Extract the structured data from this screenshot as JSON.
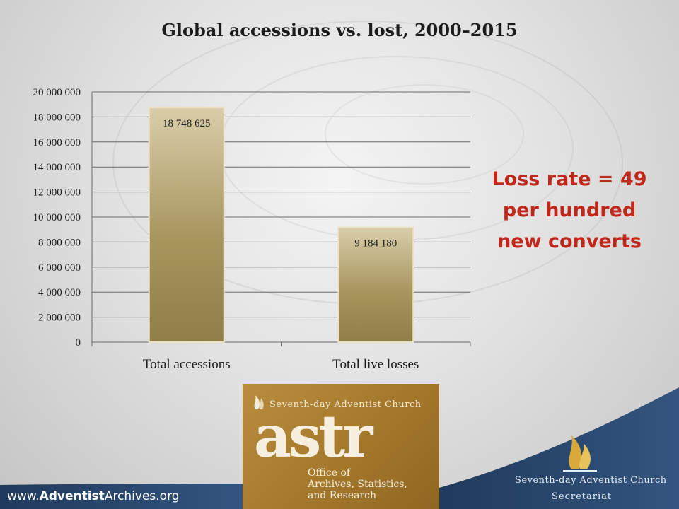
{
  "slide": {
    "title": "Global accessions vs. lost, 2000–2015",
    "callout_line1": "Loss rate = 49",
    "callout_line2": "per hundred",
    "callout_line3": "new converts",
    "website_prefix": "www.",
    "website_bold": "Adventist",
    "website_suffix": "Archives.org"
  },
  "logo_astr": {
    "church_name": "Seventh-day Adventist Church",
    "wordmark": "astr",
    "office_text": "Office of\nArchives, Statistics,\nand Research"
  },
  "logo_sda": {
    "church_name": "Seventh-day Adventist Church",
    "department": "Secretariat"
  },
  "colors": {
    "bar": "#a8965f",
    "callout": "#c0281c",
    "band": "#2f4e75",
    "logo_gold": "#a67a2c"
  },
  "chart_data": {
    "type": "bar",
    "title": "Global accessions vs. lost, 2000–2015",
    "categories": [
      "Total accessions",
      "Total live losses"
    ],
    "values": [
      18748625,
      9184180
    ],
    "data_labels": [
      "18 748 625",
      "9 184 180"
    ],
    "ylim": [
      0,
      20000000
    ],
    "yticks": [
      0,
      2000000,
      4000000,
      6000000,
      8000000,
      10000000,
      12000000,
      14000000,
      16000000,
      18000000,
      20000000
    ],
    "ytick_labels": [
      "0",
      "2 000 000",
      "4 000 000",
      "6 000 000",
      "8 000 000",
      "10 000 000",
      "12 000 000",
      "14 000 000",
      "16 000 000",
      "18 000 000",
      "20 000 000"
    ],
    "grid": true,
    "xlabel": "",
    "ylabel": ""
  }
}
